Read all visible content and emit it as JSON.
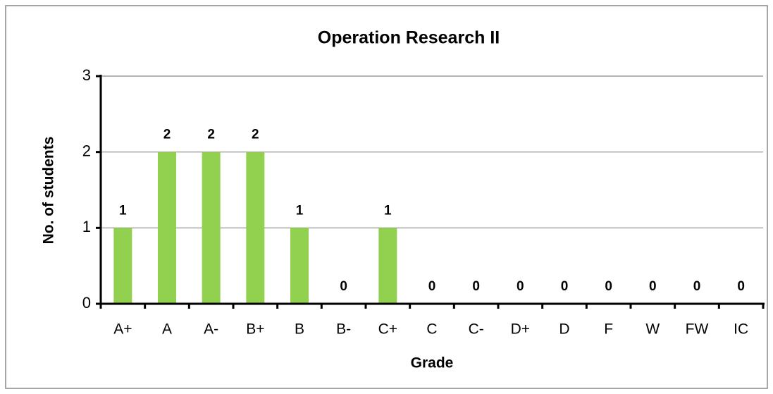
{
  "chart_data": {
    "type": "bar",
    "title": "Operation Research II",
    "x_label": "Grade",
    "y_label": "No. of students",
    "categories": [
      "A+",
      "A",
      "A-",
      "B+",
      "B",
      "B-",
      "C+",
      "C",
      "C-",
      "D+",
      "D",
      "F",
      "W",
      "FW",
      "IC"
    ],
    "values": [
      1,
      2,
      2,
      2,
      1,
      0,
      1,
      0,
      0,
      0,
      0,
      0,
      0,
      0,
      0
    ],
    "color": "#92d050",
    "ylim": [
      0,
      3
    ],
    "yticks": [
      0,
      1,
      2,
      3
    ],
    "grid": true,
    "data_labels": true
  }
}
